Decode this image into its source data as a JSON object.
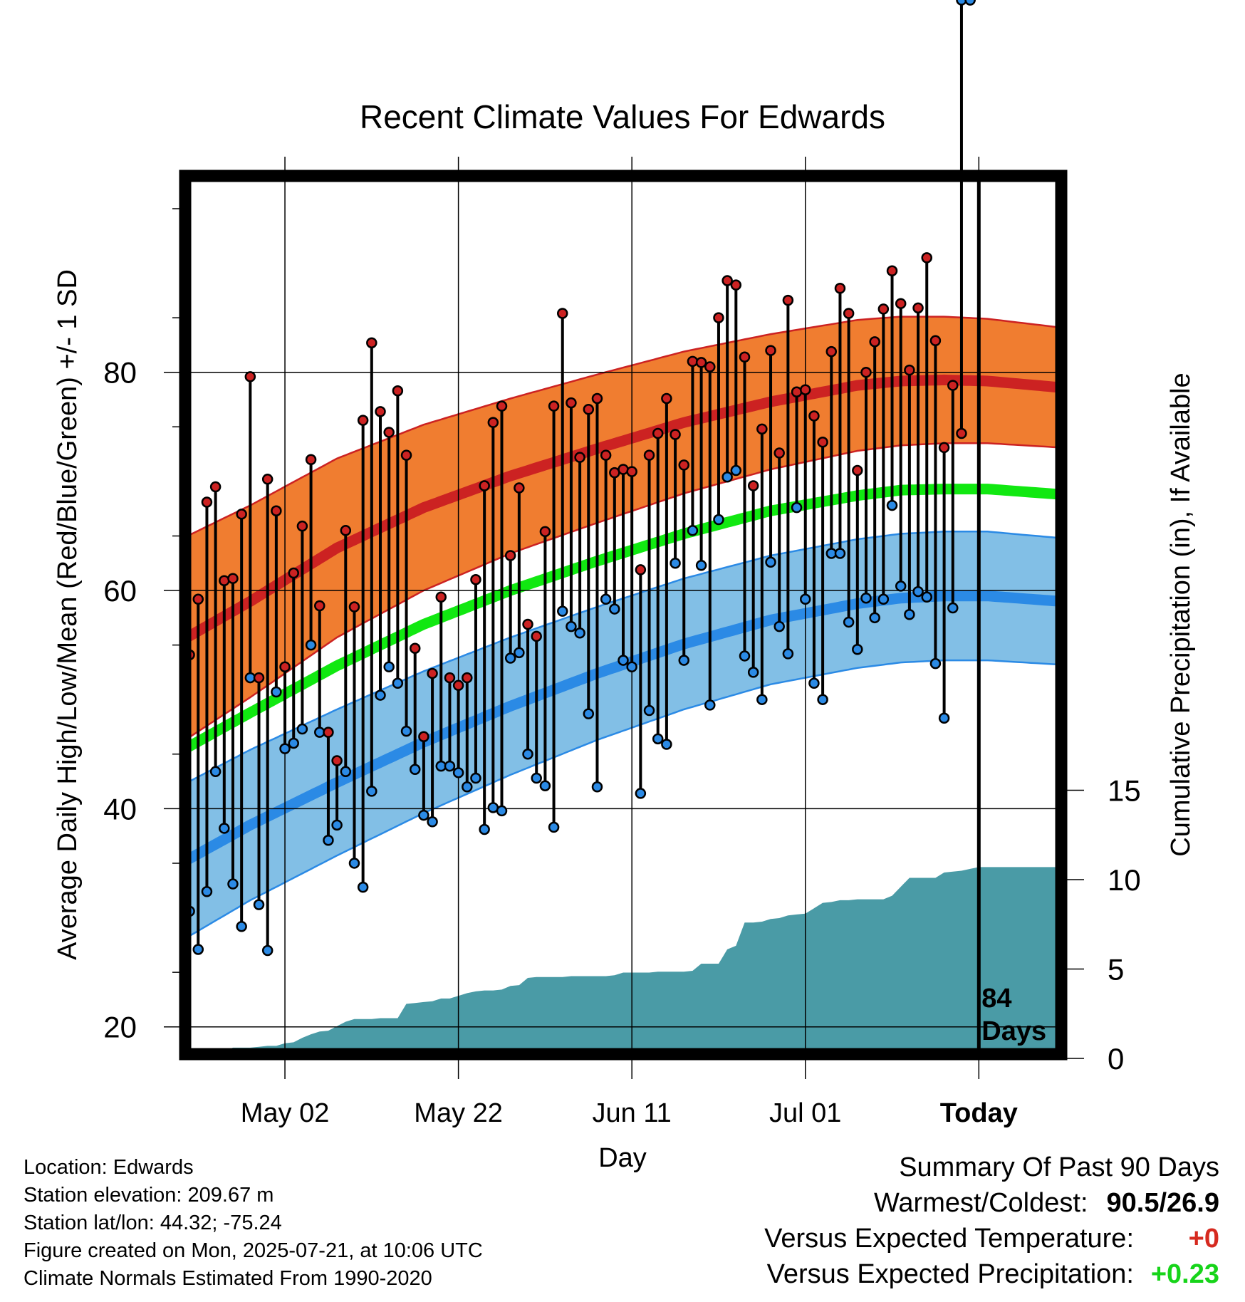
{
  "chart_data": {
    "type": "line",
    "title": "Recent Climate Values For Edwards",
    "xlabel": "Day",
    "ylabel_left": "Average Daily High/Low/Mean (Red/Blue/Green) +/- 1 SD",
    "ylabel_right": "Cumulative Precipitation (in), If Available",
    "x_ticks": [
      {
        "day": 14,
        "label": "May 02"
      },
      {
        "day": 34,
        "label": "May 22"
      },
      {
        "day": 54,
        "label": "Jun 11"
      },
      {
        "day": 74,
        "label": "Jul 01"
      },
      {
        "day": 94,
        "label": "Today"
      }
    ],
    "xlim": [
      2.5,
      103.5
    ],
    "ylim_temp": [
      17.5,
      98
    ],
    "y_ticks_temp": [
      20,
      40,
      60,
      80
    ],
    "ylim_precip": [
      0,
      16
    ],
    "y_ticks_precip": [
      0,
      5,
      10,
      15
    ],
    "today_day": 94,
    "today_annotation": "84\nDays",
    "normals": {
      "x": [
        2.5,
        10,
        20,
        30,
        40,
        50,
        60,
        70,
        80,
        85,
        90,
        95,
        103.5
      ],
      "high_mean": [
        55.6,
        59,
        63.9,
        67.6,
        70.5,
        73,
        75.4,
        77.3,
        78.8,
        79.2,
        79.3,
        79.2,
        78.6
      ],
      "high_sd": [
        9.3,
        8.8,
        8.2,
        7.6,
        7.1,
        6.8,
        6.5,
        6.2,
        6.0,
        5.9,
        5.8,
        5.7,
        5.5
      ],
      "low_mean": [
        35.2,
        38.5,
        42.4,
        46.1,
        49.4,
        52.4,
        55.1,
        57.3,
        58.8,
        59.3,
        59.5,
        59.5,
        59.0
      ],
      "low_sd": [
        7.1,
        6.9,
        6.7,
        6.5,
        6.3,
        6.1,
        6.0,
        5.9,
        5.9,
        5.9,
        5.9,
        5.9,
        5.8
      ],
      "mean_mean": [
        45.5,
        48.8,
        53.1,
        56.9,
        60.0,
        62.7,
        65.2,
        67.3,
        68.7,
        69.2,
        69.3,
        69.3,
        68.8
      ]
    },
    "days": [
      3,
      4,
      5,
      6,
      7,
      8,
      9,
      10,
      11,
      12,
      13,
      14,
      15,
      16,
      17,
      18,
      19,
      20,
      21,
      22,
      23,
      24,
      25,
      26,
      27,
      28,
      29,
      30,
      31,
      32,
      33,
      34,
      35,
      36,
      37,
      38,
      39,
      40,
      41,
      42,
      43,
      44,
      45,
      46,
      47,
      48,
      49,
      50,
      51,
      52,
      53,
      54,
      55,
      56,
      57,
      58,
      59,
      60,
      61,
      62,
      63,
      64,
      65,
      66,
      67,
      68,
      69,
      70,
      71,
      72,
      73,
      74,
      75,
      76,
      77,
      78,
      79,
      80,
      81,
      82,
      83,
      84,
      85,
      86,
      87,
      88,
      89,
      90,
      91,
      92,
      93
    ],
    "highs": [
      54.1,
      59.2,
      68.1,
      69.5,
      60.9,
      61.1,
      67,
      79.6,
      52,
      70.2,
      67.3,
      53,
      61.6,
      65.9,
      72,
      58.6,
      47,
      44.4,
      65.5,
      58.5,
      75.6,
      82.7,
      76.4,
      74.5,
      78.3,
      72.4,
      54.7,
      46.6,
      52.4,
      59.4,
      52,
      51.3,
      52,
      61,
      69.6,
      75.4,
      76.9,
      63.2,
      69.4,
      56.9,
      55.8,
      65.4,
      76.9,
      85.4,
      77.2,
      72.2,
      76.6,
      77.6,
      72.4,
      70.8,
      71.1,
      70.9,
      61.9,
      72.4,
      74.4,
      77.6,
      74.3,
      71.5,
      81,
      80.9,
      80.5,
      85,
      88.4,
      88,
      81.4,
      69.6,
      74.8,
      82,
      72.6,
      86.6,
      78.2,
      78.4,
      76,
      73.6,
      81.9,
      87.7,
      85.4,
      71,
      80,
      82.8,
      85.8,
      89.3,
      86.3,
      80.2,
      85.9,
      90.5,
      82.9,
      73.1,
      78.8,
      74.4
    ],
    "lows": [
      30.6,
      27.1,
      32.4,
      43.4,
      38.2,
      33.1,
      29.2,
      52,
      31.2,
      27,
      50.7,
      45.5,
      46,
      47.3,
      55,
      47,
      37.1,
      38.5,
      43.4,
      35,
      32.8,
      41.6,
      50.4,
      53,
      51.5,
      47.1,
      43.6,
      39.4,
      38.8,
      43.9,
      43.9,
      43.3,
      42,
      42.8,
      38.1,
      40.1,
      39.8,
      53.8,
      54.3,
      45,
      42.8,
      42.1,
      38.3,
      58.1,
      56.7,
      56.1,
      48.7,
      42,
      59.2,
      58.3,
      53.6,
      53,
      41.4,
      49,
      46.4,
      45.9,
      62.5,
      53.6,
      65.5,
      62.3,
      49.5,
      66.5,
      70.4,
      71,
      54,
      52.5,
      50,
      62.6,
      56.7,
      54.2,
      67.6,
      59.2,
      51.5,
      50,
      63.4,
      63.4,
      57.1,
      54.6,
      59.3,
      57.5,
      59.2,
      67.8,
      60.4,
      57.8,
      59.9,
      59.4,
      53.3,
      48.3,
      58.4
    ],
    "cumulative_precip": {
      "x": [
        2.5,
        6,
        7,
        8,
        10,
        11,
        12,
        13,
        14,
        15,
        16,
        17,
        18,
        19,
        20,
        21,
        22,
        23,
        24,
        25,
        26,
        27,
        28,
        29,
        30,
        31,
        32,
        33,
        34,
        35,
        36,
        37,
        38,
        39,
        40,
        41,
        42,
        43,
        44,
        45,
        46,
        47,
        48,
        49,
        50,
        51,
        52,
        53,
        54,
        55,
        56,
        57,
        58,
        59,
        60,
        61,
        62,
        63,
        64,
        65,
        66,
        67,
        68,
        69,
        70,
        71,
        72,
        73,
        74,
        75,
        76,
        77,
        78,
        79,
        80,
        81,
        82,
        83,
        84,
        85,
        86,
        87,
        88,
        89,
        90,
        91,
        92,
        93,
        94,
        103.5
      ],
      "y": [
        0,
        0,
        0.4,
        0.6,
        0.6,
        0.65,
        0.7,
        0.7,
        0.85,
        0.9,
        1.15,
        1.35,
        1.5,
        1.55,
        1.8,
        2.05,
        2.2,
        2.2,
        2.2,
        2.25,
        2.25,
        2.25,
        3.05,
        3.1,
        3.15,
        3.2,
        3.35,
        3.35,
        3.5,
        3.65,
        3.75,
        3.8,
        3.8,
        3.85,
        4.05,
        4.1,
        4.5,
        4.55,
        4.55,
        4.55,
        4.55,
        4.6,
        4.6,
        4.6,
        4.6,
        4.6,
        4.65,
        4.8,
        4.8,
        4.8,
        4.8,
        4.85,
        4.85,
        4.85,
        4.85,
        4.9,
        5.3,
        5.3,
        5.3,
        6.1,
        6.3,
        7.6,
        7.6,
        7.65,
        7.8,
        7.85,
        8,
        8.05,
        8.1,
        8.4,
        8.7,
        8.75,
        8.85,
        8.85,
        8.9,
        8.9,
        8.9,
        8.9,
        9.1,
        9.6,
        10.1,
        10.1,
        10.1,
        10.1,
        10.4,
        10.45,
        10.5,
        10.6,
        10.7,
        10.7
      ]
    },
    "colors": {
      "high": "#cc2222",
      "high_band": "#f07d30",
      "low": "#2b8ae5",
      "low_band": "#82bfe6",
      "mean": "#11e811",
      "precip": "#4a9ba6",
      "grid": "#000000"
    }
  },
  "footer": {
    "location": "Location: Edwards",
    "elevation": "Station elevation: 209.67 m",
    "latlon": "Station lat/lon: 44.32; -75.24",
    "created": "Figure created on Mon, 2025-07-21, at 10:06 UTC",
    "normals_note": "Climate Normals Estimated From 1990-2020"
  },
  "summary": {
    "heading": "Summary Of Past 90 Days",
    "warm_cold_label": "Warmest/Coldest:",
    "warm_cold_value": "90.5/26.9",
    "temp_label": "Versus Expected Temperature:",
    "temp_value": "+0",
    "temp_color": "#d62a1f",
    "precip_label": "Versus Expected Precipitation:",
    "precip_value": "+0.23",
    "precip_color": "#17d41a"
  }
}
